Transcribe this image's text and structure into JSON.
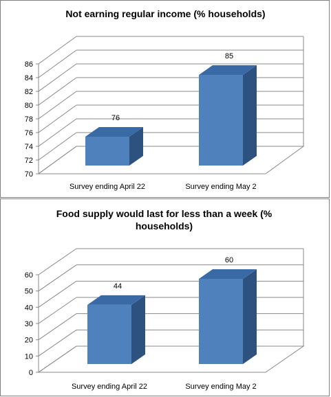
{
  "chart_data": [
    {
      "type": "bar",
      "title": "Not earning regular income (% households)",
      "categories": [
        "Survey ending April 22",
        "Survey ending May 2"
      ],
      "values": [
        76,
        85
      ],
      "ylim": [
        70,
        86
      ],
      "yticks": [
        70,
        72,
        74,
        76,
        78,
        80,
        82,
        84,
        86
      ],
      "xlabel": "",
      "ylabel": "",
      "grid": true,
      "style": "3d-column",
      "bar_color": "#4f81bd",
      "bar_side_color": "#2e5280",
      "bar_top_color": "#3a6aa6"
    },
    {
      "type": "bar",
      "title": "Food supply would last for less than a week (% households)",
      "categories": [
        "Survey ending April 22",
        "Survey ending May 2"
      ],
      "values": [
        44,
        60
      ],
      "ylim": [
        0,
        60
      ],
      "yticks": [
        0,
        10,
        20,
        30,
        40,
        50,
        60
      ],
      "xlabel": "",
      "ylabel": "",
      "grid": true,
      "style": "3d-column",
      "bar_color": "#4f81bd",
      "bar_side_color": "#2e5280",
      "bar_top_color": "#3a6aa6"
    }
  ]
}
